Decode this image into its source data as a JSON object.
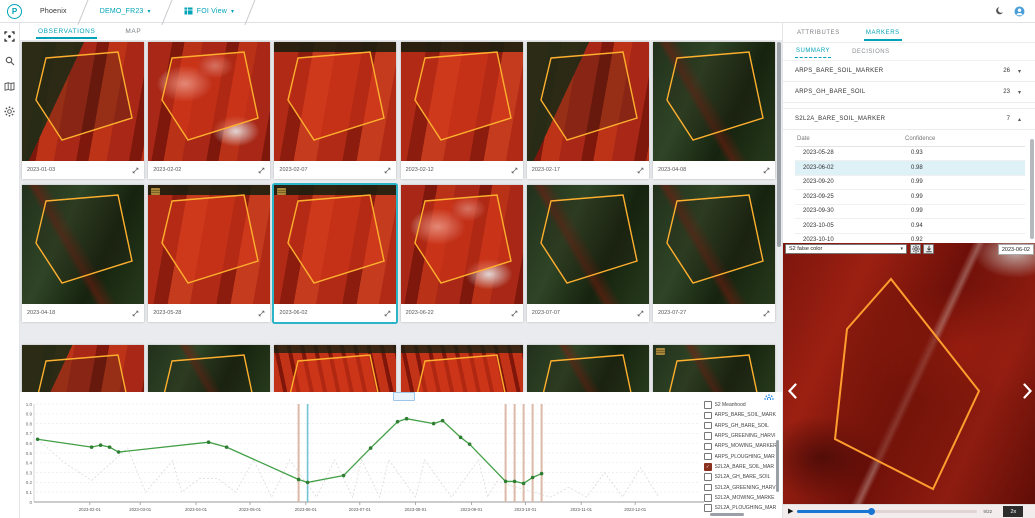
{
  "header": {
    "logo_letter": "P",
    "product": "Phoenix",
    "workspace": "DEMO_FR23",
    "view": "FOI View"
  },
  "main": {
    "tabs": [
      {
        "label": "OBSERVATIONS",
        "active": true
      },
      {
        "label": "MAP",
        "active": false
      }
    ]
  },
  "grid": {
    "tiles": [
      {
        "date": "2023-01-03",
        "variant": "mixed",
        "badge": false,
        "selected": false
      },
      {
        "date": "2023-02-02",
        "variant": "cloud",
        "badge": false,
        "selected": false
      },
      {
        "date": "2023-02-07",
        "variant": "red",
        "badge": false,
        "selected": false
      },
      {
        "date": "2023-02-12",
        "variant": "red",
        "badge": false,
        "selected": false
      },
      {
        "date": "2023-02-17",
        "variant": "mixed",
        "badge": false,
        "selected": false
      },
      {
        "date": "2023-04-08",
        "variant": "dark",
        "badge": false,
        "selected": false
      },
      {
        "date": "2023-04-18",
        "variant": "dark",
        "badge": false,
        "selected": false
      },
      {
        "date": "2023-05-28",
        "variant": "red",
        "badge": true,
        "selected": false
      },
      {
        "date": "2023-06-02",
        "variant": "red",
        "badge": true,
        "selected": true
      },
      {
        "date": "2023-06-22",
        "variant": "cloud",
        "badge": false,
        "selected": false
      },
      {
        "date": "2023-07-07",
        "variant": "dark",
        "badge": false,
        "selected": false
      },
      {
        "date": "2023-07-27",
        "variant": "dark",
        "badge": false,
        "selected": false
      },
      {
        "date": "",
        "variant": "mixed",
        "badge": false,
        "selected": false
      },
      {
        "date": "",
        "variant": "dark",
        "badge": false,
        "selected": false
      },
      {
        "date": "",
        "variant": "rows",
        "badge": false,
        "selected": false
      },
      {
        "date": "",
        "variant": "rows",
        "badge": false,
        "selected": false
      },
      {
        "date": "",
        "variant": "dark",
        "badge": false,
        "selected": false
      },
      {
        "date": "",
        "variant": "dark",
        "badge": true,
        "selected": false
      }
    ]
  },
  "markers_panel": {
    "tabs": [
      {
        "label": "ATTRIBUTES",
        "active": false
      },
      {
        "label": "MARKERS",
        "active": true
      }
    ],
    "subtabs": [
      {
        "label": "SUMMARY",
        "active": true
      },
      {
        "label": "DECISIONS",
        "active": false
      }
    ],
    "groups": [
      {
        "name": "ARPS_BARE_SOIL_MARKER",
        "count": "26",
        "expanded": false
      },
      {
        "name": "ARPS_GH_BARE_SOIL",
        "count": "23",
        "expanded": false
      },
      {
        "name": "S2L2A_BARE_SOIL_MARKER",
        "count": "7",
        "expanded": true
      }
    ],
    "table": {
      "columns": [
        "Date",
        "Confidence"
      ],
      "rows": [
        [
          "2023-05-28",
          "0.93"
        ],
        [
          "2023-06-02",
          "0.98"
        ],
        [
          "2023-09-20",
          "0.99"
        ],
        [
          "2023-09-25",
          "0.99"
        ],
        [
          "2023-09-30",
          "0.99"
        ],
        [
          "2023-10-05",
          "0.94"
        ],
        [
          "2023-10-10",
          "0.92"
        ]
      ],
      "selected_row": 1
    }
  },
  "preview": {
    "layer_select": "S2 false color",
    "date": "2023-06-02",
    "counter": "9/22",
    "speed": "2x",
    "progress": 0.41
  },
  "legend": {
    "items": [
      {
        "label": "S2 Meanhood",
        "checked": false
      },
      {
        "label": "ARPS_BARE_SOIL_MARK",
        "checked": false
      },
      {
        "label": "ARPS_GH_BARE_SOIL",
        "checked": false
      },
      {
        "label": "ARPS_GREENING_HARVI",
        "checked": false
      },
      {
        "label": "ARPS_MOWING_MARKER",
        "checked": false
      },
      {
        "label": "ARPS_PLOUGHING_MAR",
        "checked": false
      },
      {
        "label": "S2L2A_BARE_SOIL_MAR",
        "checked": true
      },
      {
        "label": "S2L2A_GH_BARE_SOIL",
        "checked": false
      },
      {
        "label": "S2L2A_GREENING_HARV",
        "checked": false
      },
      {
        "label": "S2L2A_MOWING_MARKE",
        "checked": false
      },
      {
        "label": "S2L2A_PLOUGHING_MAR",
        "checked": false
      }
    ]
  },
  "chart_data": {
    "type": "line",
    "title": "",
    "xlabel": "",
    "ylabel": "",
    "ylim": [
      0,
      1.0
    ],
    "y_tick_step": 0.1,
    "grid": true,
    "legend_position": "right",
    "x_ticks": [
      "2023-02-01",
      "2023-03-01",
      "2023-04-01",
      "2023-05-01",
      "2023-06-01",
      "2023-07-01",
      "2023-08-01",
      "2023-09-01",
      "2023-10-01",
      "2023-11-01",
      "2023-12-01"
    ],
    "series": [
      {
        "name": "S2 Meanhood",
        "color": "#43a047",
        "style": "solid",
        "points": [
          [
            "2023-01-03",
            0.64
          ],
          [
            "2023-02-02",
            0.56
          ],
          [
            "2023-02-07",
            0.58
          ],
          [
            "2023-02-12",
            0.56
          ],
          [
            "2023-02-17",
            0.51
          ],
          [
            "2023-04-08",
            0.61
          ],
          [
            "2023-04-18",
            0.56
          ],
          [
            "2023-05-28",
            0.23
          ],
          [
            "2023-06-02",
            0.2
          ],
          [
            "2023-06-22",
            0.27
          ],
          [
            "2023-07-07",
            0.55
          ],
          [
            "2023-07-22",
            0.82
          ],
          [
            "2023-07-27",
            0.85
          ],
          [
            "2023-08-11",
            0.8
          ],
          [
            "2023-08-16",
            0.83
          ],
          [
            "2023-08-26",
            0.66
          ],
          [
            "2023-08-31",
            0.59
          ],
          [
            "2023-09-20",
            0.21
          ],
          [
            "2023-09-25",
            0.21
          ],
          [
            "2023-09-30",
            0.19
          ],
          [
            "2023-10-05",
            0.25
          ],
          [
            "2023-10-10",
            0.29
          ]
        ]
      },
      {
        "name": "cloud-probability-dotted",
        "color": "#d7dbd7",
        "style": "dotted",
        "points": [
          [
            "2023-01-03",
            0.64
          ],
          [
            "2023-01-18",
            0.4
          ],
          [
            "2023-02-02",
            0.22
          ],
          [
            "2023-02-22",
            0.55
          ],
          [
            "2023-03-04",
            0.1
          ],
          [
            "2023-03-19",
            0.42
          ],
          [
            "2023-03-24",
            0.1
          ],
          [
            "2023-04-03",
            0.24
          ],
          [
            "2023-04-13",
            0.24
          ],
          [
            "2023-04-23",
            0.1
          ],
          [
            "2023-05-03",
            0.43
          ],
          [
            "2023-05-13",
            0.05
          ],
          [
            "2023-05-23",
            0.43
          ],
          [
            "2023-06-07",
            0.05
          ],
          [
            "2023-06-17",
            0.43
          ],
          [
            "2023-06-27",
            0.05
          ],
          [
            "2023-07-02",
            0.43
          ],
          [
            "2023-07-12",
            0.05
          ],
          [
            "2023-07-17",
            0.43
          ],
          [
            "2023-08-01",
            0.05
          ],
          [
            "2023-08-06",
            0.43
          ],
          [
            "2023-08-21",
            0.05
          ],
          [
            "2023-09-05",
            0.43
          ],
          [
            "2023-09-10",
            0.05
          ],
          [
            "2023-09-15",
            0.21
          ],
          [
            "2023-10-15",
            0.05
          ],
          [
            "2023-10-25",
            0.15
          ],
          [
            "2023-11-04",
            0.05
          ],
          [
            "2023-11-14",
            0.3
          ],
          [
            "2023-11-24",
            0.05
          ],
          [
            "2023-12-04",
            0.35
          ],
          [
            "2023-12-14",
            0.05
          ]
        ]
      }
    ],
    "marker_lines": {
      "color": "#dcb9a8",
      "selected_color": "#6fc3d2",
      "selected": "2023-06-02",
      "dates": [
        "2023-05-28",
        "2023-06-02",
        "2023-09-20",
        "2023-09-25",
        "2023-09-30",
        "2023-10-05",
        "2023-10-10"
      ]
    }
  },
  "colors": {
    "accent": "#00a3b8",
    "selected_tile": "#2cb5c9",
    "badge": "#a8873b",
    "chart_green": "#43a047",
    "slider_blue": "#1976d2",
    "avatar_blue": "#4a9fd8",
    "row_highlight": "#ddf1f7"
  }
}
